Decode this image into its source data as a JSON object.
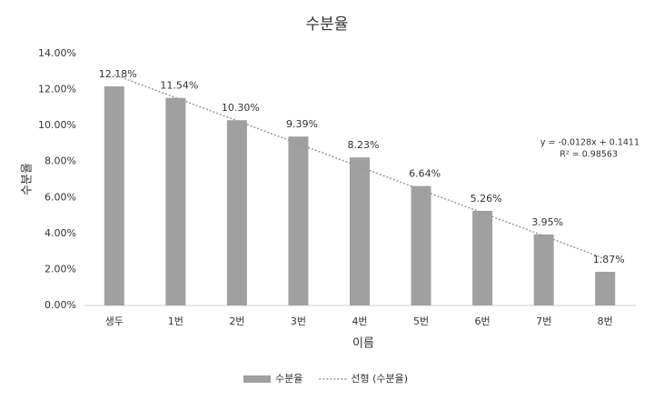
{
  "chart_data": {
    "type": "bar",
    "title": "수분율",
    "x_label": "이름",
    "y_label": "수분율",
    "categories": [
      "생두",
      "1번",
      "2번",
      "3번",
      "4번",
      "5번",
      "6번",
      "7번",
      "8번"
    ],
    "series": [
      {
        "name": "수분율",
        "type": "bar",
        "color": "#a0a0a0",
        "values": [
          12.18,
          11.54,
          10.3,
          9.39,
          8.23,
          6.64,
          5.26,
          3.95,
          1.87
        ],
        "value_labels": [
          "12.18%",
          "11.54%",
          "10.30%",
          "9.39%",
          "8.23%",
          "6.64%",
          "5.26%",
          "3.95%",
          "1.87%"
        ]
      },
      {
        "name": "선형 (수분율)",
        "type": "line",
        "dash": "dotted",
        "color": "#999999",
        "values": [
          12.83,
          11.55,
          10.27,
          8.99,
          7.71,
          6.43,
          5.15,
          3.87,
          2.59
        ]
      }
    ],
    "annotations": [
      "y = -0.0128x + 0.1411",
      "R² = 0.98563"
    ],
    "ylim": [
      0,
      14
    ],
    "yticks": [
      {
        "value": 0,
        "label": "0.00%"
      },
      {
        "value": 2,
        "label": "2.00%"
      },
      {
        "value": 4,
        "label": "4.00%"
      },
      {
        "value": 6,
        "label": "6.00%"
      },
      {
        "value": 8,
        "label": "8.00%"
      },
      {
        "value": 10,
        "label": "10.00%"
      },
      {
        "value": 12,
        "label": "12.00%"
      },
      {
        "value": 14,
        "label": "14.00%"
      }
    ],
    "grid": false,
    "legend": "bottom"
  }
}
